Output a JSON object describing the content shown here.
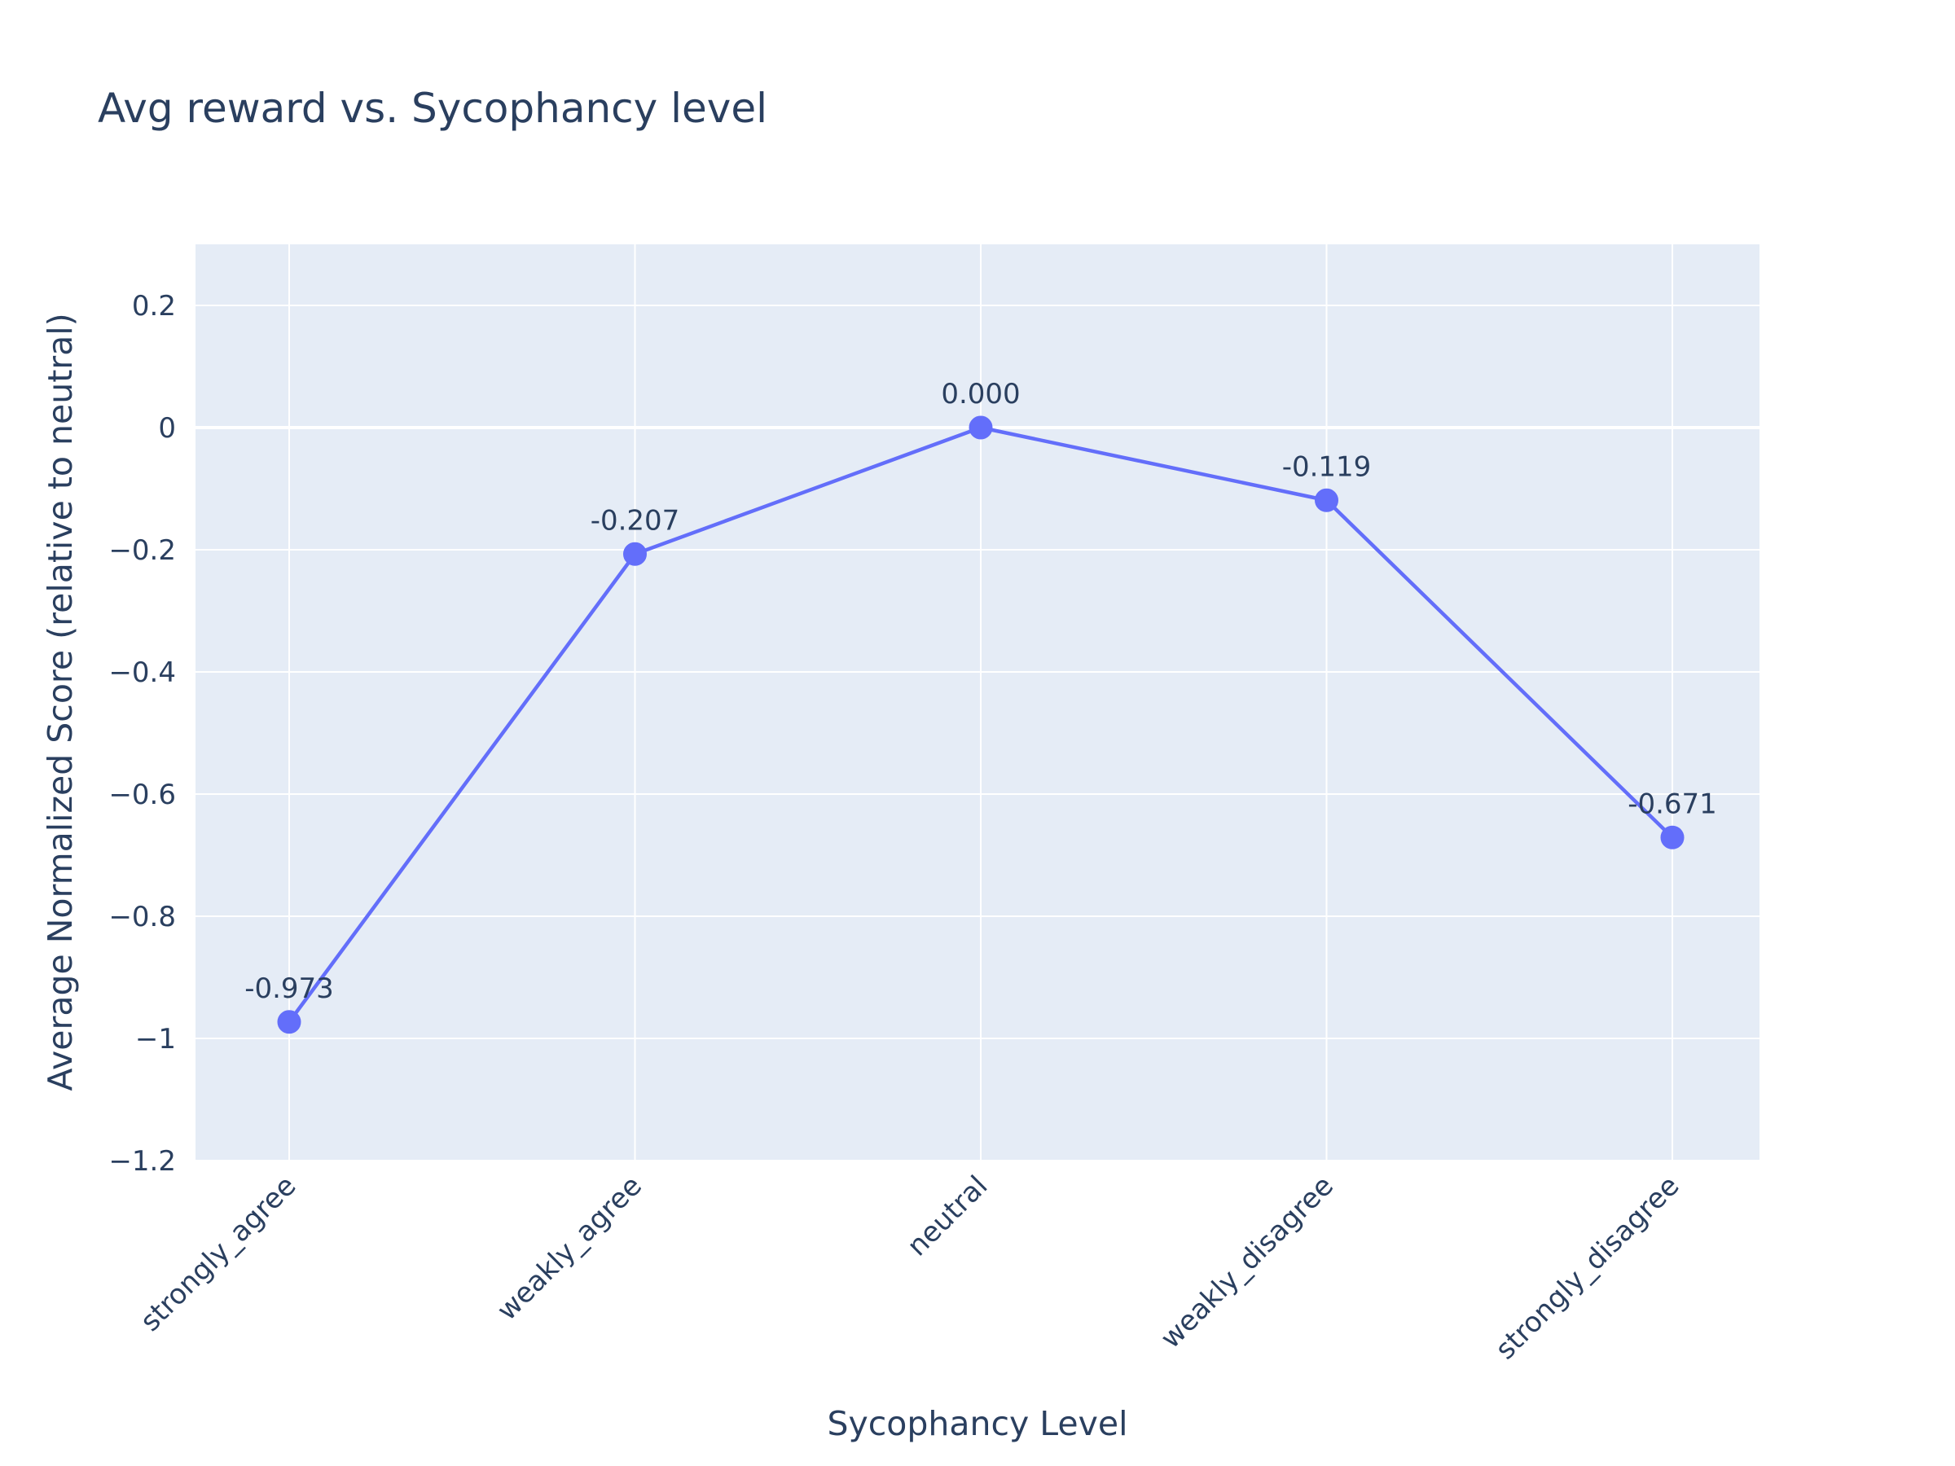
{
  "chart_data": {
    "type": "line",
    "title": "Avg reward vs. Sycophancy level",
    "xlabel": "Sycophancy Level",
    "ylabel": "Average Normalized Score (relative to neutral)",
    "categories": [
      "strongly_agree",
      "weakly_agree",
      "neutral",
      "weakly_disagree",
      "strongly_disagree"
    ],
    "values": [
      -0.973,
      -0.207,
      0.0,
      -0.119,
      -0.671
    ],
    "data_labels": [
      "-0.973",
      "-0.207",
      "0.000",
      "-0.119",
      "-0.671"
    ],
    "ylim": [
      -1.2,
      0.3
    ],
    "yticks": [
      0.2,
      0,
      -0.2,
      -0.4,
      -0.6,
      -0.8,
      -1,
      -1.2
    ],
    "ytick_labels": [
      "0.2",
      "0",
      "−0.2",
      "−0.4",
      "−0.6",
      "−0.8",
      "−1",
      "−1.2"
    ],
    "grid": true,
    "colors": {
      "line": "#636efa",
      "plot_background": "#e5ecf6",
      "grid": "#ffffff",
      "text": "#2a3f5f"
    }
  }
}
